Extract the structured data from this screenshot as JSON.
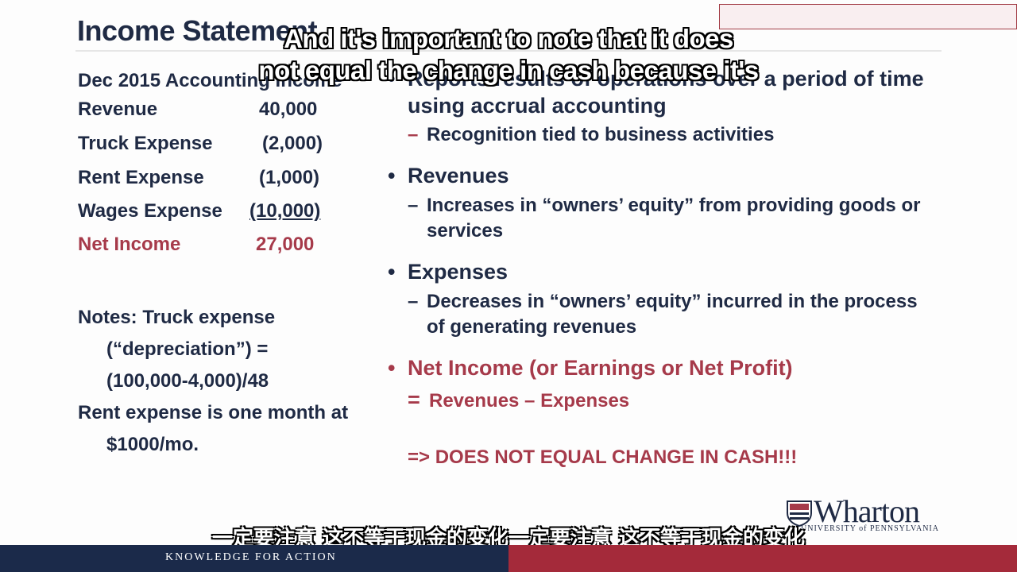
{
  "slide": {
    "title": "Income Statement",
    "left": {
      "heading": "Dec 2015 Accounting Income",
      "rows": [
        {
          "label": "Revenue",
          "amount": "40,000"
        },
        {
          "label": "Truck Expense",
          "amount": "(2,000)"
        },
        {
          "label": "Rent Expense",
          "amount": "(1,000)"
        },
        {
          "label": "Wages Expense",
          "amount": "(10,000)"
        },
        {
          "label": "Net Income",
          "amount": "27,000"
        }
      ],
      "notes": {
        "line1": "Notes: Truck expense",
        "line2": "(“depreciation”) =",
        "line3": "(100,000-4,000)/48",
        "line4": "Rent expense is one month at",
        "line5": "$1000/mo."
      }
    },
    "right": {
      "b1": {
        "line1": "Reports results of operations over a period of time",
        "line2": "using accrual accounting",
        "sub": "Recognition tied to business activities"
      },
      "b2": {
        "title": "Revenues",
        "sub1": "Increases in “owners’ equity” from providing goods or",
        "sub2": "services"
      },
      "b3": {
        "title": "Expenses",
        "sub1": "Decreases in “owners’ equity” incurred in the process",
        "sub2": "of generating revenues"
      },
      "b4": {
        "title": "Net Income (or Earnings or Net Profit)",
        "formula": "Revenues – Expenses",
        "eq": "=",
        "note": "=> DOES NOT EQUAL CHANGE IN CASH!!!"
      }
    },
    "bullet_char": "•",
    "dash_char": "–"
  },
  "subtitles": {
    "en_line1": "And it's important to note that it does",
    "en_line2": "not equal the change in cash because it's",
    "cn": "一定要注意 这不等于现金的变化一定要注意 这不等于现金的变化"
  },
  "logo": {
    "name": "Wharton",
    "sub": "UNIVERSITY of PENNSYLVANIA"
  },
  "footer": {
    "tagline": "KNOWLEDGE FOR ACTION"
  },
  "colors": {
    "navy": "#1f2a44",
    "red": "#a63a4a",
    "footer_navy": "#1b2a4a",
    "footer_red": "#a42a3a"
  }
}
